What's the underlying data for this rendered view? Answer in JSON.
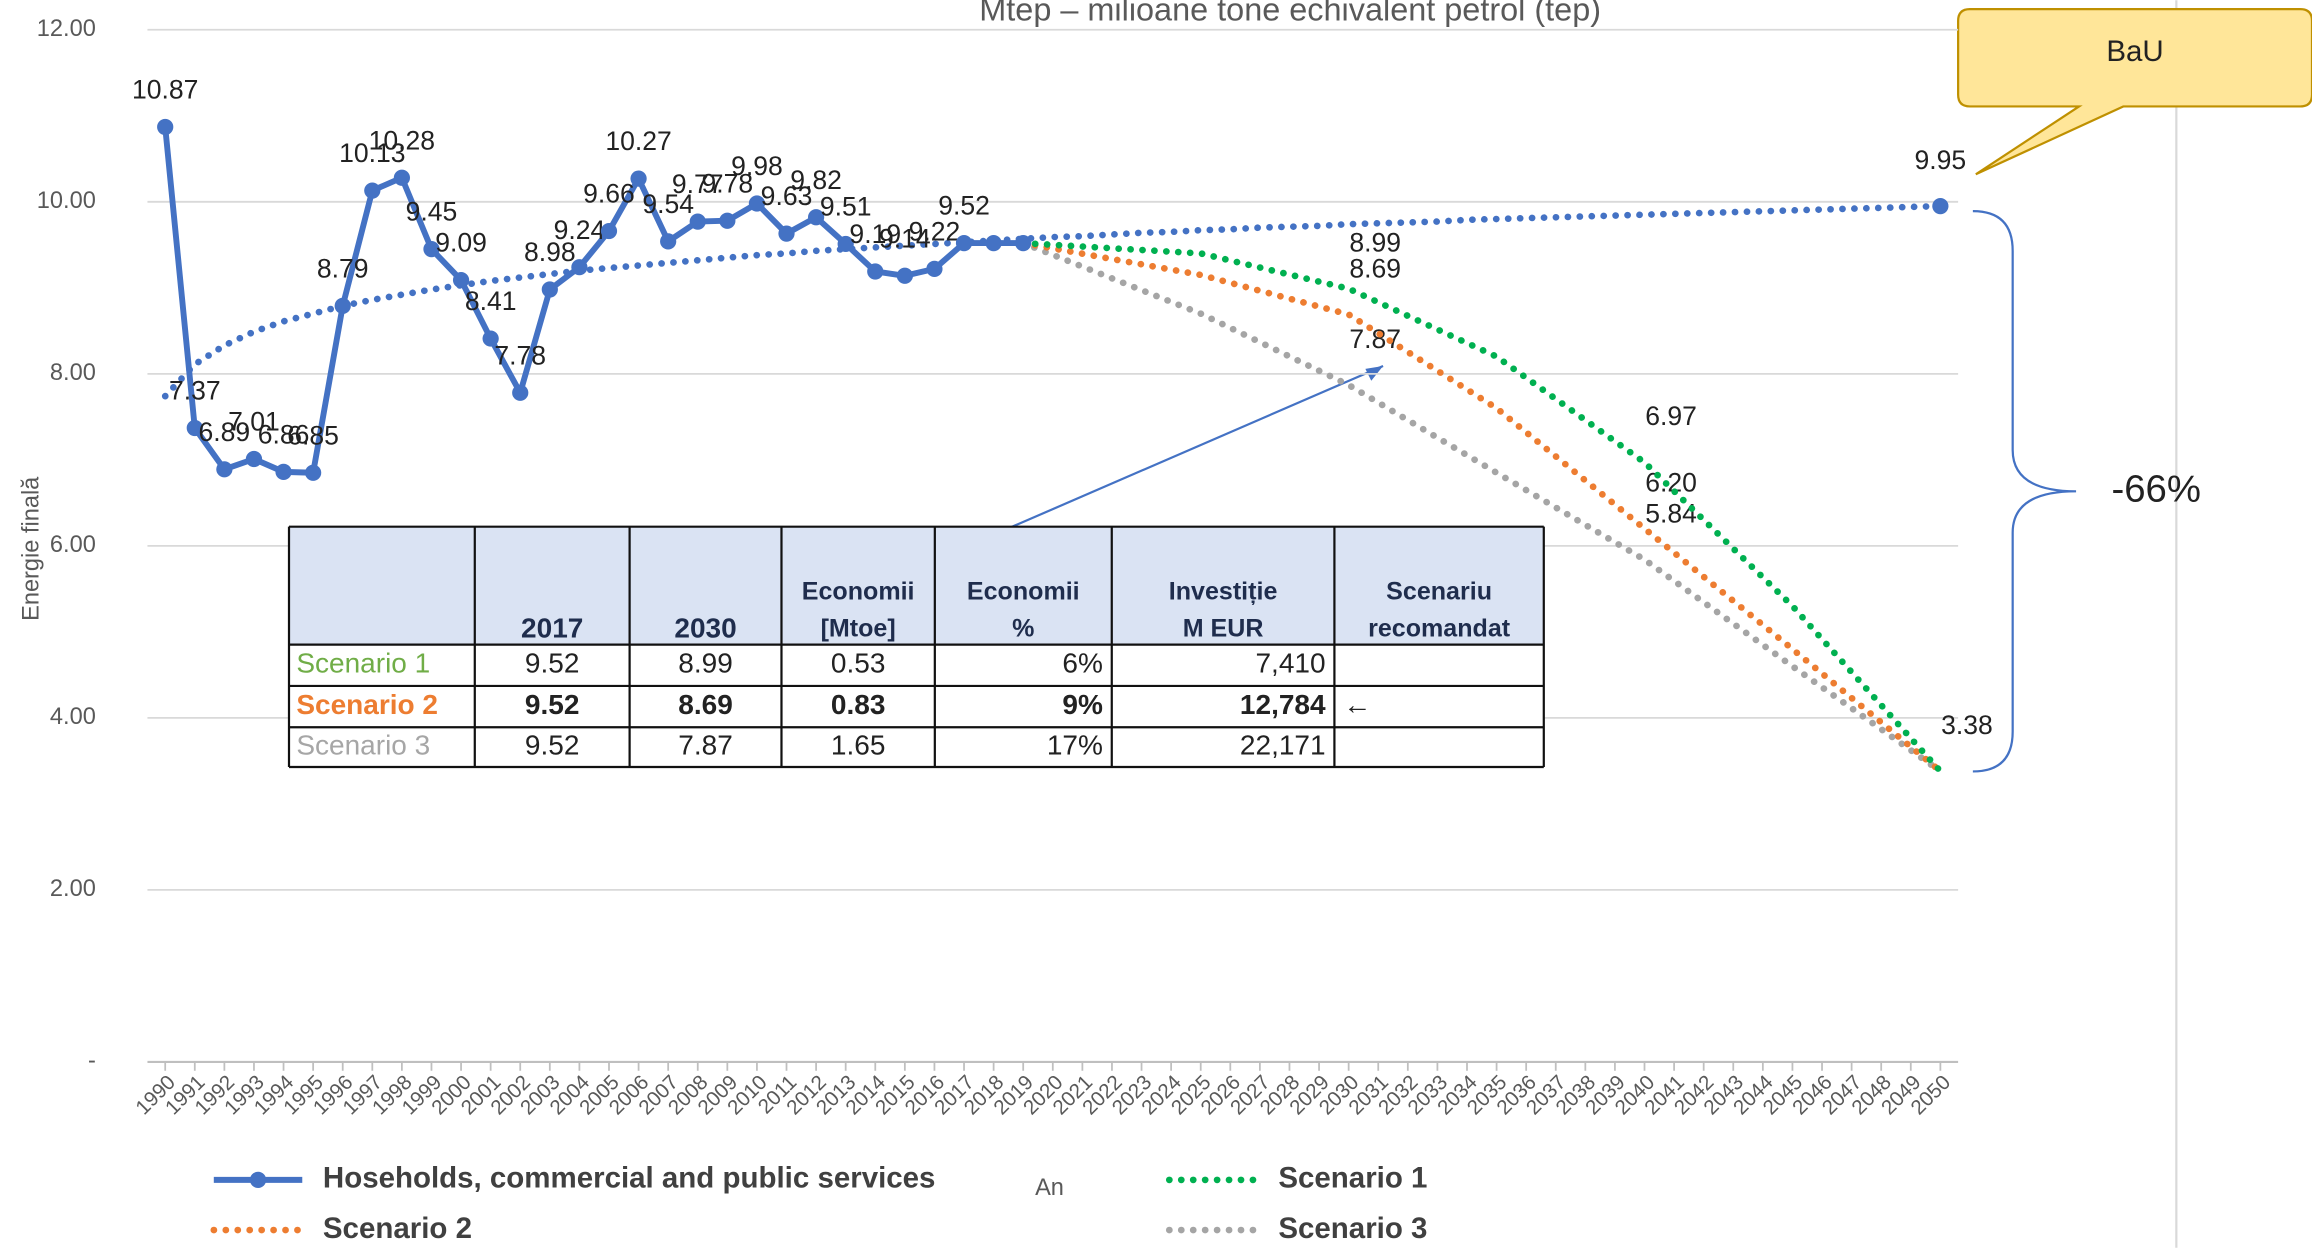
{
  "chart_data": {
    "type": "line",
    "title": "Mtep – milioane tone echivalent petrol (tep)",
    "y_label": "Energie finală",
    "x_label": "An",
    "xlim": [
      1989.4,
      2050.6
    ],
    "xticks": [
      1990,
      1991,
      1992,
      1993,
      1994,
      1995,
      1996,
      1997,
      1998,
      1999,
      2000,
      2001,
      2002,
      2003,
      2004,
      2005,
      2006,
      2007,
      2008,
      2009,
      2010,
      2011,
      2012,
      2013,
      2014,
      2015,
      2016,
      2017,
      2018,
      2019,
      2020,
      2021,
      2022,
      2023,
      2024,
      2025,
      2026,
      2027,
      2028,
      2029,
      2030,
      2031,
      2032,
      2033,
      2034,
      2035,
      2036,
      2037,
      2038,
      2039,
      2040,
      2041,
      2042,
      2043,
      2044,
      2045,
      2046,
      2047,
      2048,
      2049,
      2050
    ],
    "ylim": [
      0,
      12
    ],
    "yticks": [
      {
        "value": 0,
        "label": "-"
      },
      {
        "value": 2,
        "label": "2.00"
      },
      {
        "value": 4,
        "label": "4.00"
      },
      {
        "value": 6,
        "label": "6.00"
      },
      {
        "value": 8,
        "label": "8.00"
      },
      {
        "value": 10,
        "label": "10.00"
      },
      {
        "value": 12,
        "label": "12.00"
      }
    ],
    "grid": true,
    "series": [
      {
        "name": "Hoseholds, commercial and public services",
        "color": "#4472c4",
        "line_style": "solid",
        "markers": true,
        "x": [
          1990,
          1991,
          1992,
          1993,
          1994,
          1995,
          1996,
          1997,
          1998,
          1999,
          2000,
          2001,
          2002,
          2003,
          2004,
          2005,
          2006,
          2007,
          2008,
          2009,
          2010,
          2011,
          2012,
          2013,
          2014,
          2015,
          2016,
          2017,
          2018,
          2019
        ],
        "values": [
          10.87,
          7.37,
          6.89,
          7.01,
          6.86,
          6.85,
          8.79,
          10.13,
          10.28,
          9.45,
          9.09,
          8.41,
          7.78,
          8.98,
          9.24,
          9.66,
          10.27,
          9.54,
          9.77,
          9.78,
          9.98,
          9.63,
          9.82,
          9.51,
          9.19,
          9.14,
          9.22,
          9.52,
          9.52,
          9.52
        ],
        "value_labels": [
          "10.87",
          "7.37",
          "6.89",
          "7.01",
          "6.86",
          "6.85",
          "8.79",
          "10.13",
          "10.28",
          "9.45",
          "9.09",
          "8.41",
          "7.78",
          "8.98",
          "9.24",
          "9.66",
          "10.27",
          "9.54",
          "9.77",
          "9.78",
          "9.98",
          "9.63",
          "9.82",
          "9.51",
          "9.19",
          "9.14",
          "9.22",
          "9.52",
          null,
          null
        ]
      },
      {
        "name": "Scenario 1",
        "color": "#00b050",
        "line_style": "dotted",
        "markers": false,
        "x": [
          2019,
          2025,
          2030,
          2035,
          2040,
          2045,
          2050
        ],
        "values": [
          9.52,
          9.4,
          8.99,
          8.2,
          6.97,
          5.3,
          3.38
        ],
        "value_labels": [
          null,
          null,
          "8.99",
          null,
          "6.97",
          null,
          "3.38"
        ]
      },
      {
        "name": "Scenario 2",
        "color": "#ed7d31",
        "line_style": "dotted",
        "markers": false,
        "x": [
          2019,
          2025,
          2030,
          2035,
          2040,
          2045,
          2050
        ],
        "values": [
          9.52,
          9.15,
          8.69,
          7.6,
          6.2,
          4.8,
          3.38
        ],
        "value_labels": [
          null,
          null,
          "8.69",
          null,
          "6.20",
          null,
          null
        ]
      },
      {
        "name": "Scenario 3",
        "color": "#a5a5a5",
        "line_style": "dotted",
        "markers": false,
        "x": [
          2019,
          2025,
          2030,
          2035,
          2040,
          2045,
          2050
        ],
        "values": [
          9.52,
          8.7,
          7.87,
          6.85,
          5.84,
          4.6,
          3.38
        ],
        "value_labels": [
          null,
          null,
          "7.87",
          null,
          "5.84",
          null,
          null
        ]
      }
    ],
    "trend": {
      "color": "#4472c4",
      "line_style": "dotted",
      "x": [
        1990,
        1991,
        1992,
        1993,
        1994,
        1995,
        1996,
        1997,
        1998,
        1999,
        2000,
        2001,
        2002,
        2003,
        2004,
        2005,
        2006,
        2007,
        2008,
        2009,
        2010,
        2011,
        2012,
        2013,
        2014,
        2015,
        2016,
        2017,
        2018,
        2019,
        2020,
        2021,
        2022,
        2023,
        2024,
        2025,
        2026,
        2027,
        2028,
        2029,
        2030,
        2031,
        2032,
        2033,
        2034,
        2035,
        2036,
        2037,
        2038,
        2039,
        2040,
        2041,
        2042,
        2043,
        2044,
        2045,
        2046,
        2047,
        2048,
        2049,
        2050
      ],
      "values": [
        7.74,
        8.11,
        8.33,
        8.49,
        8.61,
        8.7,
        8.79,
        8.86,
        8.92,
        8.98,
        9.03,
        9.08,
        9.12,
        9.16,
        9.2,
        9.23,
        9.26,
        9.29,
        9.32,
        9.35,
        9.38,
        9.4,
        9.43,
        9.45,
        9.47,
        9.49,
        9.51,
        9.53,
        9.55,
        9.57,
        9.59,
        9.6,
        9.62,
        9.64,
        9.65,
        9.67,
        9.68,
        9.7,
        9.71,
        9.72,
        9.74,
        9.75,
        9.76,
        9.77,
        9.79,
        9.8,
        9.81,
        9.82,
        9.83,
        9.84,
        9.85,
        9.86,
        9.87,
        9.88,
        9.89,
        9.9,
        9.91,
        9.92,
        9.93,
        9.94,
        9.95
      ],
      "value_labels": [
        null,
        null,
        null,
        null,
        null,
        null,
        null,
        null,
        null,
        null,
        null,
        null,
        null,
        null,
        null,
        null,
        null,
        null,
        null,
        null,
        null,
        null,
        null,
        null,
        null,
        null,
        null,
        null,
        null,
        null,
        null,
        null,
        null,
        null,
        null,
        null,
        null,
        null,
        null,
        null,
        null,
        null,
        null,
        null,
        null,
        null,
        null,
        null,
        null,
        null,
        null,
        null,
        null,
        null,
        null,
        null,
        null,
        null,
        null,
        null,
        "9.95"
      ]
    },
    "callout": "BaU",
    "change_annotation": "-66%",
    "table": {
      "headers": [
        [
          "2017"
        ],
        [
          "2030"
        ],
        [
          "Economii",
          "[Mtoe]"
        ],
        [
          "Economii",
          "%"
        ],
        [
          "Investiție",
          "M EUR"
        ],
        [
          "Scenariu",
          "recomandat"
        ]
      ],
      "rows": [
        {
          "name": "Scenario 1",
          "name_color": "#70ad47",
          "bold": false,
          "cells": [
            "9.52",
            "8.99",
            "0.53",
            "6%",
            "7,410"
          ]
        },
        {
          "name": "Scenario 2",
          "name_color": "#ed7d31",
          "bold": true,
          "cells": [
            "9.52",
            "8.69",
            "0.83",
            "9%",
            "12,784"
          ],
          "recommended": "←"
        },
        {
          "name": "Scenario 3",
          "name_color": "#a6a6a6",
          "bold": false,
          "cells": [
            "9.52",
            "7.87",
            "1.65",
            "17%",
            "22,171"
          ]
        }
      ]
    }
  }
}
